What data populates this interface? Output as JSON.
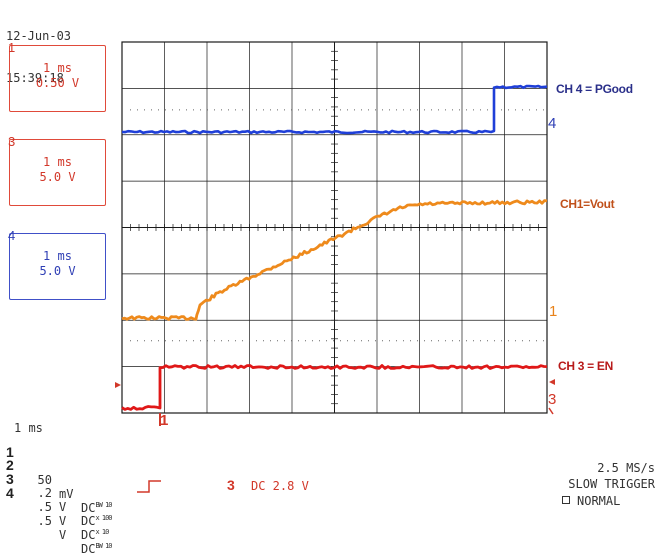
{
  "header": {
    "date": "12-Jun-03",
    "time": "15:39:18"
  },
  "channel_boxes": [
    {
      "tag": "1",
      "timebase": "1 ms",
      "scale": "0.50 V",
      "color": "#d2382a"
    },
    {
      "tag": "3",
      "timebase": "1 ms",
      "scale": "5.0 V",
      "color": "#d2382a"
    },
    {
      "tag": "4",
      "timebase": "1 ms",
      "scale": "5.0 V",
      "color": "#2f3fb5"
    }
  ],
  "trace_labels": {
    "ch4": "CH 4 = PGood",
    "ch1": "CH1=Vout",
    "ch3": "CH 3 = EN"
  },
  "ground_markers": {
    "ch4": "4",
    "ch1": "1",
    "ch3": "3",
    "trigger_position": "1"
  },
  "status": {
    "timebase": "1 ms",
    "channels": [
      {
        "num": "1",
        "value": "50",
        "unit": "mV",
        "coupling": "DC",
        "sub": "BW 10"
      },
      {
        "num": "2",
        "value": ".2",
        "unit": "V",
        "coupling": "DC",
        "sub": "x 100"
      },
      {
        "num": "3",
        "value": ".5",
        "unit": "V",
        "coupling": "DC",
        "sub": "x 10"
      },
      {
        "num": "4",
        "value": ".5",
        "unit": "V",
        "coupling": "DC",
        "sub": "BW 10"
      }
    ],
    "trigger_channel": "3",
    "trigger_info": "DC 2.8 V",
    "sample_rate": "2.5 MS/s",
    "trigger_mode": "SLOW TRIGGER",
    "acquisition_mode": "NORMAL"
  },
  "colors": {
    "ch1": "#ee8a1c",
    "ch3": "#e01818",
    "ch4": "#1f3fd8",
    "grid": "#1a1a1a"
  }
}
